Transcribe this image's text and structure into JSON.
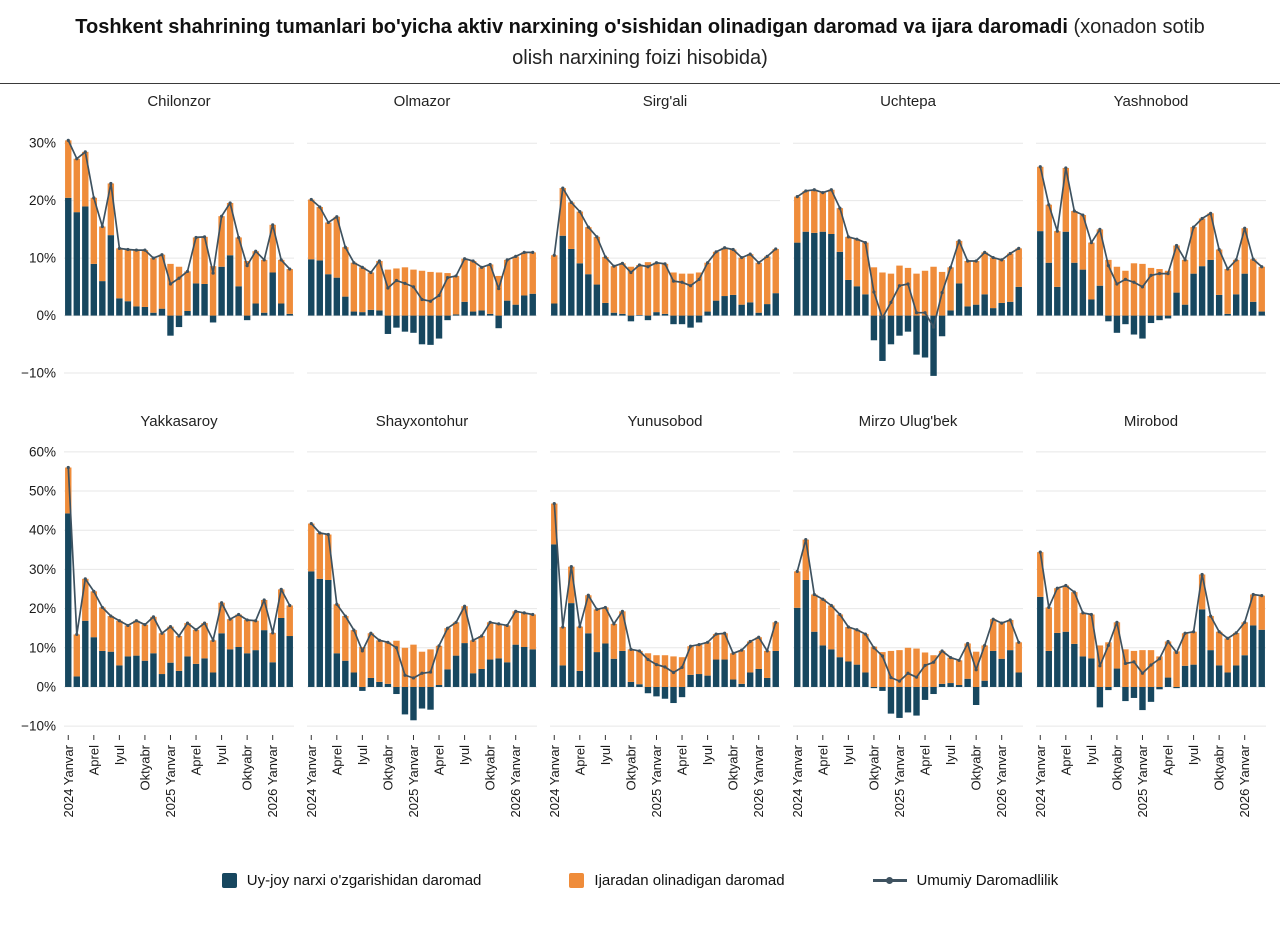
{
  "title": {
    "bold": "Toshkent shahrining tumanlari bo'yicha aktiv narxining o'sishidan olinadigan daromad va ijara daromadi",
    "normal": "(xonadon sotib olish narxining foizi hisobida)"
  },
  "legend": {
    "items": [
      {
        "label": "Uy-joy narxi o'zgarishidan daromad",
        "type": "square",
        "color": "#17475f"
      },
      {
        "label": "Ijaradan olinadigan daromad",
        "type": "square",
        "color": "#ef8c3a"
      },
      {
        "label": "Umumiy Daromadlilik",
        "type": "line",
        "color": "#3e5260"
      }
    ]
  },
  "colors": {
    "price_bar": "#17475f",
    "rent_bar": "#ef8c3a",
    "total_line": "#3e5260",
    "grid": "#e7e7e7",
    "axis_text": "#1a1a1a",
    "panel_title": "#222222",
    "background": "#ffffff"
  },
  "chart_data": {
    "type": "bar",
    "stacked": true,
    "note": "Stacked monthly bars (price-change income + rental income) with total profitability line = sum of both series; values in % of apartment purchase price",
    "x": [
      "2024 Yanvar",
      "Fevral",
      "Mart",
      "Aprel",
      "May",
      "Iyun",
      "Iyul",
      "Avgust",
      "Sentyabr",
      "Oktyabr",
      "Noyabr",
      "Dekabr",
      "2025 Yanvar",
      "Fevral",
      "Mart",
      "Aprel",
      "May",
      "Iyun",
      "Iyul",
      "Avgust",
      "Sentyabr",
      "Oktyabr",
      "Noyabr",
      "Dekabr",
      "2026 Yanvar",
      "Fevral",
      "Mart"
    ],
    "x_ticks": [
      {
        "index": 0,
        "label": "2024 Yanvar"
      },
      {
        "index": 3,
        "label": "Aprel"
      },
      {
        "index": 6,
        "label": "Iyul"
      },
      {
        "index": 9,
        "label": "Oktyabr"
      },
      {
        "index": 12,
        "label": "2025 Yanvar"
      },
      {
        "index": 15,
        "label": "Aprel"
      },
      {
        "index": 18,
        "label": "Iyul"
      },
      {
        "index": 21,
        "label": "Oktyabr"
      },
      {
        "index": 24,
        "label": "2026 Yanvar"
      }
    ],
    "rows": [
      {
        "ylim": [
          -14,
          33
        ],
        "yticks": [
          30,
          20,
          10,
          0,
          -10
        ]
      },
      {
        "ylim": [
          -12,
          62
        ],
        "yticks": [
          60,
          50,
          40,
          30,
          20,
          10,
          0,
          -10
        ]
      }
    ],
    "series_names": {
      "price": "Uy-joy narxi o'zgarishidan daromad",
      "rent": "Ijaradan olinadigan daromad",
      "total": "Umumiy Daromadlilik"
    },
    "panels": [
      {
        "name": "Chilonzor",
        "row": 0,
        "price": [
          20.5,
          18,
          19,
          9,
          6,
          14,
          3,
          2.5,
          1.6,
          1.5,
          0.5,
          1.2,
          -3.5,
          -2,
          0.8,
          5.6,
          5.5,
          -1.2,
          8.5,
          10.5,
          5.1,
          -0.8,
          2.1,
          0.5,
          7.5,
          2.1,
          0.3
        ],
        "rent": [
          10,
          9.3,
          9.5,
          11.5,
          9.5,
          9,
          8.7,
          9,
          9.8,
          9.9,
          9.5,
          9.4,
          9,
          8.5,
          6.9,
          8,
          8.2,
          8.6,
          8.8,
          9.1,
          8.5,
          9.5,
          9.1,
          9.2,
          8.3,
          7.6,
          7.8
        ]
      },
      {
        "name": "Olmazor",
        "row": 0,
        "price": [
          9.8,
          9.6,
          7.2,
          6.6,
          3.3,
          0.7,
          0.6,
          1.0,
          0.9,
          -3.2,
          -2.1,
          -2.8,
          -3.0,
          -5.0,
          -5.1,
          -4.0,
          -0.8,
          0.2,
          2.4,
          0.7,
          0.9,
          0.3,
          -2.2,
          2.6,
          1.9,
          3.5,
          3.8
        ],
        "rent": [
          10.4,
          9.3,
          9.0,
          10.6,
          8.6,
          8.5,
          7.8,
          6.5,
          8.6,
          8.0,
          8.2,
          8.4,
          8.0,
          7.8,
          7.6,
          7.5,
          7.4,
          6.7,
          7.5,
          8.8,
          7.5,
          8.6,
          6.9,
          7.1,
          8.4,
          7.5,
          7.2
        ]
      },
      {
        "name": "Sirg'ali",
        "row": 0,
        "price": [
          2.1,
          13.9,
          11.6,
          9.1,
          7.2,
          5.4,
          2.2,
          0.5,
          0.3,
          -1.0,
          0.1,
          -0.8,
          0.6,
          0.3,
          -1.5,
          -1.5,
          -2.1,
          -1.2,
          0.7,
          2.6,
          3.4,
          3.6,
          1.9,
          2.3,
          0.5,
          2.0,
          3.9
        ],
        "rent": [
          8.4,
          8.3,
          8.1,
          9.0,
          8.2,
          8.3,
          8.0,
          8.1,
          8.8,
          8.5,
          8.7,
          9.3,
          8.6,
          8.7,
          7.5,
          7.3,
          7.3,
          7.5,
          8.5,
          8.5,
          8.4,
          7.9,
          8.2,
          8.4,
          8.7,
          8.3,
          7.7
        ]
      },
      {
        "name": "Uchtepa",
        "row": 0,
        "price": [
          12.7,
          14.6,
          14.4,
          14.6,
          14.2,
          11.1,
          6.2,
          5.1,
          3.7,
          -4.3,
          -7.9,
          -5.0,
          -3.5,
          -2.8,
          -6.8,
          -7.3,
          -10.5,
          -3.6,
          0.9,
          5.6,
          1.6,
          1.9,
          3.7,
          1.3,
          2.2,
          2.4,
          5.0
        ],
        "rent": [
          8.0,
          7.1,
          7.5,
          6.8,
          7.7,
          7.6,
          7.5,
          8.2,
          9.0,
          8.4,
          7.5,
          7.3,
          8.7,
          8.3,
          7.3,
          7.8,
          8.5,
          7.6,
          7.5,
          7.4,
          7.9,
          7.6,
          7.3,
          8.8,
          7.5,
          8.4,
          6.7
        ]
      },
      {
        "name": "Yashnobod",
        "row": 0,
        "price": [
          14.7,
          9.2,
          5.0,
          14.6,
          9.2,
          8.0,
          2.8,
          5.2,
          -1.0,
          -3.0,
          -1.5,
          -3.3,
          -4.0,
          -1.3,
          -0.8,
          -0.5,
          4.0,
          1.9,
          7.3,
          8.6,
          9.7,
          3.6,
          0.3,
          3.7,
          7.3,
          2.4,
          0.7
        ],
        "rent": [
          11.2,
          10.1,
          9.7,
          11.1,
          9.0,
          9.5,
          9.9,
          9.8,
          9.7,
          8.5,
          7.8,
          9.1,
          9.0,
          8.3,
          8.1,
          7.8,
          8.2,
          7.8,
          8.1,
          8.3,
          8.1,
          7.9,
          7.8,
          6.0,
          7.9,
          7.4,
          7.8
        ]
      },
      {
        "name": "Yakkasaroy",
        "row": 1,
        "price": [
          44.3,
          2.7,
          16.9,
          12.7,
          9.2,
          9.0,
          5.5,
          7.8,
          8.0,
          6.7,
          8.6,
          3.3,
          6.2,
          4.1,
          7.8,
          5.9,
          7.3,
          3.7,
          13.7,
          9.6,
          10.2,
          8.6,
          9.4,
          14.5,
          6.3,
          17.6,
          13.0
        ],
        "rent": [
          11.7,
          10.7,
          10.7,
          11.7,
          11.1,
          9.1,
          11.4,
          7.9,
          8.9,
          9.2,
          9.3,
          10.4,
          9.2,
          8.9,
          8.5,
          8.7,
          9.0,
          8.2,
          7.8,
          7.7,
          8.3,
          8.5,
          7.5,
          7.7,
          7.5,
          7.3,
          7.8
        ]
      },
      {
        "name": "Shayxontohur",
        "row": 1,
        "price": [
          29.5,
          27.6,
          27.3,
          8.6,
          6.7,
          3.7,
          -1.0,
          2.3,
          1.3,
          0.8,
          -1.8,
          -7.0,
          -8.5,
          -5.5,
          -5.8,
          0.5,
          4.5,
          8.0,
          11.2,
          3.5,
          4.6,
          7.0,
          7.3,
          6.3,
          10.8,
          10.2,
          9.6
        ],
        "rent": [
          12.2,
          11.7,
          11.6,
          12.5,
          11.4,
          10.8,
          10.2,
          11.4,
          10.6,
          10.6,
          11.8,
          10.0,
          10.8,
          9.0,
          9.6,
          10.0,
          10.5,
          8.5,
          9.4,
          8.4,
          8.4,
          9.5,
          8.8,
          9.4,
          8.5,
          8.7,
          8.9
        ]
      },
      {
        "name": "Yunusobod",
        "row": 1,
        "price": [
          36.4,
          5.5,
          21.4,
          4.1,
          13.7,
          8.9,
          11.1,
          7.2,
          9.2,
          1.3,
          0.7,
          -1.6,
          -2.4,
          -3.0,
          -4.1,
          -2.6,
          3.1,
          3.3,
          2.9,
          7.0,
          7.0,
          1.9,
          0.8,
          3.7,
          4.6,
          2.3,
          9.2
        ],
        "rent": [
          10.4,
          9.8,
          9.3,
          11.3,
          9.7,
          10.9,
          9.2,
          8.9,
          10.1,
          8.3,
          8.5,
          8.6,
          8.1,
          8.1,
          7.8,
          7.6,
          7.3,
          7.5,
          8.5,
          6.5,
          6.7,
          6.7,
          8.6,
          7.9,
          8.1,
          6.9,
          7.3
        ]
      },
      {
        "name": "Mirzo Ulug'bek",
        "row": 1,
        "price": [
          20.2,
          27.3,
          14.1,
          10.6,
          9.6,
          7.6,
          6.5,
          5.7,
          3.7,
          -0.3,
          -1.0,
          -6.8,
          -7.9,
          -6.5,
          -7.3,
          -3.3,
          -1.8,
          0.8,
          1.0,
          0.5,
          2.1,
          -4.6,
          1.6,
          9.2,
          7.2,
          9.4,
          3.7
        ],
        "rent": [
          9.3,
          10.3,
          9.5,
          11.8,
          11.2,
          10.9,
          8.8,
          8.9,
          9.8,
          10.3,
          8.9,
          9.2,
          9.4,
          10.0,
          9.8,
          8.8,
          8.1,
          8.4,
          6.5,
          6.3,
          9.0,
          9.0,
          9.0,
          8.1,
          9.1,
          7.7,
          7.7
        ]
      },
      {
        "name": "Mirobod",
        "row": 1,
        "price": [
          23.0,
          9.2,
          13.8,
          14.1,
          11.0,
          7.8,
          7.3,
          -5.2,
          -0.8,
          4.7,
          -3.6,
          -2.8,
          -5.9,
          -3.8,
          -0.6,
          2.4,
          -0.3,
          5.4,
          5.7,
          19.8,
          9.4,
          5.5,
          3.7,
          5.5,
          8.1,
          15.7,
          14.6
        ],
        "rent": [
          11.4,
          11.1,
          11.4,
          11.8,
          13.2,
          11.1,
          11.2,
          10.6,
          11.4,
          11.8,
          9.6,
          9.2,
          9.4,
          9.4,
          7.8,
          9.2,
          9.1,
          8.3,
          8.4,
          8.9,
          8.7,
          8.6,
          8.7,
          8.3,
          8.4,
          7.9,
          8.7
        ]
      }
    ]
  }
}
